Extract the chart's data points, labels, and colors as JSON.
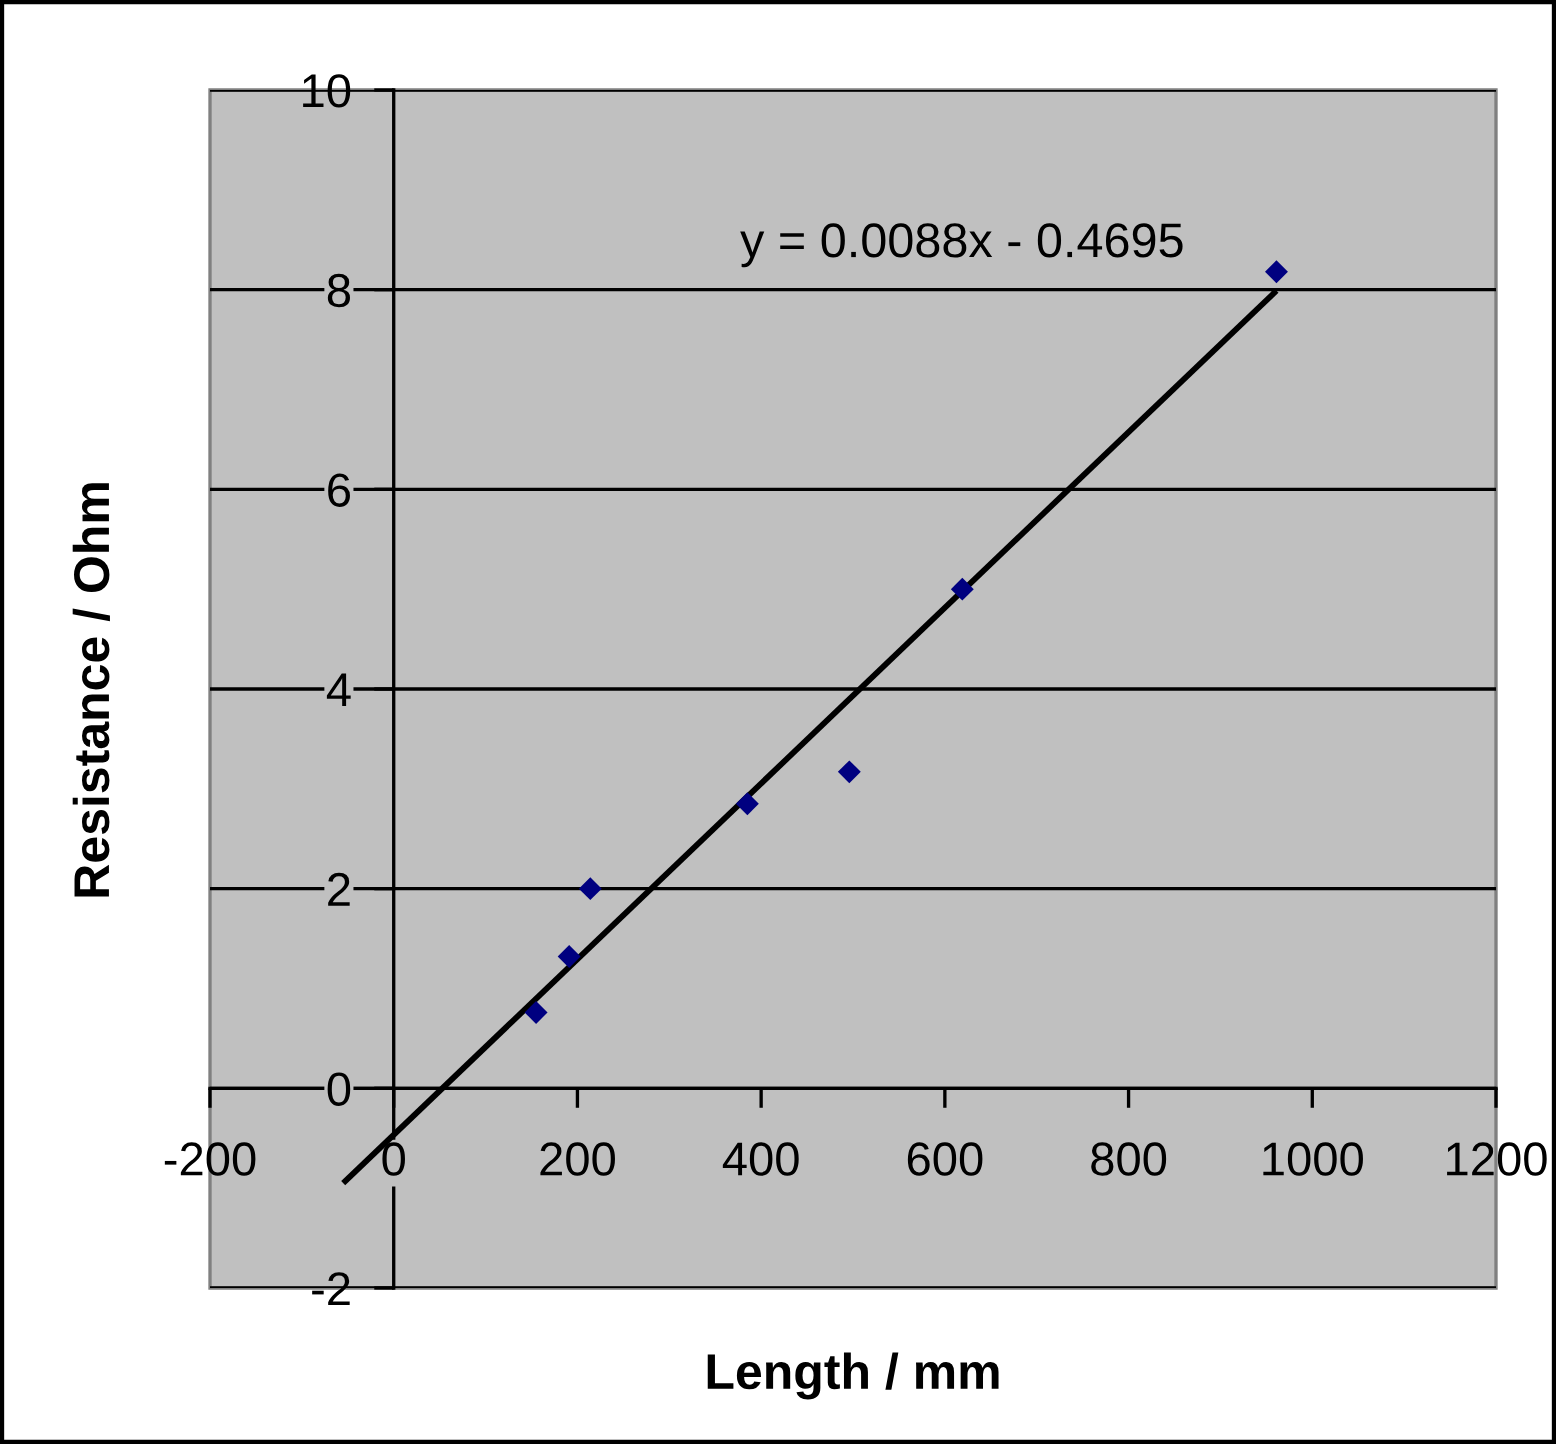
{
  "chart_data": {
    "type": "scatter",
    "xlabel": "Length / mm",
    "ylabel": "Resistance / Ohm",
    "annotations": [
      "y = 0.0088x - 0.4695"
    ],
    "xlim": [
      -200,
      1200
    ],
    "ylim": [
      -2,
      10
    ],
    "xticks": [
      -200,
      0,
      200,
      400,
      600,
      800,
      1000,
      1200
    ],
    "yticks": [
      -2,
      0,
      2,
      4,
      6,
      8,
      10
    ],
    "grid": "y",
    "marker": "diamond",
    "series": [
      {
        "color": "#000080",
        "x": [
          155,
          191,
          214,
          385,
          496,
          619,
          961
        ],
        "values": [
          0.76,
          1.32,
          2.0,
          2.85,
          3.17,
          5.0,
          8.18
        ]
      },
      {
        "type": "line",
        "color": "#000000",
        "marker": "none",
        "line_style": "solid",
        "x": [
          -55,
          961
        ],
        "values": [
          -0.95,
          7.99
        ]
      }
    ]
  }
}
